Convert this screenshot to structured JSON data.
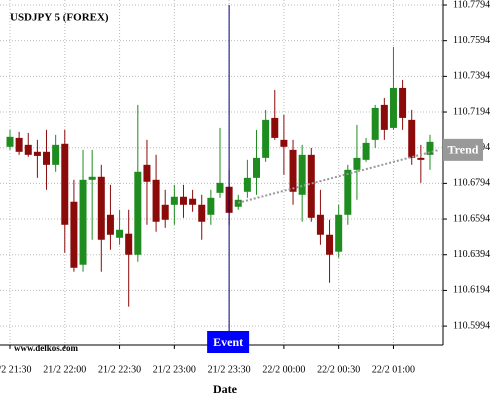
{
  "chart_data": {
    "type": "candlestick",
    "title": "USDJPY 5 (FOREX)",
    "x_label": "Date",
    "watermark": "www.delkos.com",
    "up_color": "#1e8c1e",
    "down_color": "#8b0a0a",
    "grid": true,
    "ylim": [
      110.5888,
      110.7822
    ],
    "yticks": [
      110.5994,
      110.6194,
      110.6394,
      110.6594,
      110.6794,
      110.6994,
      110.7194,
      110.7394,
      110.7594,
      110.7794
    ],
    "categories": [
      "21/2 21:30",
      null,
      null,
      null,
      null,
      null,
      "21/2 22:00",
      null,
      null,
      null,
      null,
      null,
      "21/2 22:30",
      null,
      null,
      null,
      null,
      null,
      "21/2 23:00",
      null,
      null,
      null,
      null,
      null,
      "21/2 23:30",
      null,
      null,
      null,
      null,
      null,
      "22/2 00:00",
      null,
      null,
      null,
      null,
      null,
      "22/2 00:30",
      null,
      null,
      null,
      null,
      null,
      "22/2 01:00",
      null,
      null,
      null,
      null
    ],
    "open": [
      110.6999,
      110.7049,
      110.701,
      110.6971,
      110.6971,
      110.6898,
      110.7016,
      110.6691,
      110.6338,
      110.6814,
      110.6831,
      110.6618,
      110.6489,
      110.6512,
      110.6394,
      110.6898,
      110.6814,
      110.6674,
      110.6674,
      110.6719,
      110.6708,
      110.6674,
      110.6618,
      110.6741,
      110.6775,
      110.6663,
      110.6747,
      110.6825,
      110.6937,
      110.7161,
      110.7038,
      110.6982,
      110.673,
      110.6954,
      110.6618,
      110.6506,
      110.6411,
      110.6618,
      110.687,
      110.6926,
      110.7038,
      110.7234,
      110.7105,
      110.7329,
      110.715,
      110.6937,
      110.6954
    ],
    "high": [
      110.7094,
      110.7083,
      110.7077,
      110.7038,
      110.7094,
      110.7066,
      110.7094,
      110.6814,
      110.6982,
      110.6982,
      110.6898,
      110.6786,
      110.6646,
      110.6646,
      110.7234,
      110.7038,
      110.6954,
      110.6758,
      110.6786,
      110.6786,
      110.6758,
      110.673,
      110.6758,
      110.7105,
      110.687,
      110.673,
      110.6926,
      110.7094,
      110.7206,
      110.7318,
      110.7178,
      110.7038,
      110.701,
      110.6993,
      110.6758,
      110.659,
      110.6674,
      110.6898,
      110.7122,
      110.7049,
      110.7234,
      110.7273,
      110.7559,
      110.7374,
      110.7206,
      110.701,
      110.7066
    ],
    "low": [
      110.6982,
      110.6954,
      110.6943,
      110.6825,
      110.6758,
      110.6859,
      110.6405,
      110.6299,
      110.6299,
      110.6478,
      110.6299,
      110.6422,
      110.645,
      110.6103,
      110.6355,
      110.6562,
      110.6523,
      110.6545,
      110.6562,
      110.6601,
      110.6635,
      110.6478,
      110.6562,
      110.6713,
      110.6562,
      110.6646,
      110.6713,
      110.673,
      110.6915,
      110.7038,
      110.6842,
      110.6674,
      110.6579,
      110.6579,
      110.645,
      110.6237,
      110.6377,
      110.6562,
      110.6702,
      110.6915,
      110.6993,
      110.7038,
      110.7094,
      110.7094,
      110.6898,
      110.6797,
      110.687
    ],
    "close": [
      110.7055,
      110.6971,
      110.6954,
      110.6948,
      110.6898,
      110.701,
      110.6562,
      110.6321,
      110.6814,
      110.6831,
      110.6478,
      110.6506,
      110.6534,
      110.6394,
      110.6859,
      110.6803,
      110.6579,
      110.659,
      110.6719,
      110.6674,
      110.6674,
      110.6579,
      110.6713,
      110.6797,
      110.6629,
      110.6702,
      110.6825,
      110.6937,
      110.715,
      110.7049,
      110.6999,
      110.6747,
      110.6954,
      110.6601,
      110.6506,
      110.6394,
      110.6618,
      110.687,
      110.6937,
      110.7021,
      110.7217,
      110.7094,
      110.7329,
      110.7161,
      110.6937,
      110.6926,
      110.7027
    ],
    "event": {
      "label": "Event",
      "index": 24,
      "color": "#0000ff"
    },
    "trend": {
      "label": "Trend",
      "index": [
        25,
        47
      ],
      "values": [
        110.6685,
        110.6982
      ],
      "color": "#999999"
    }
  }
}
